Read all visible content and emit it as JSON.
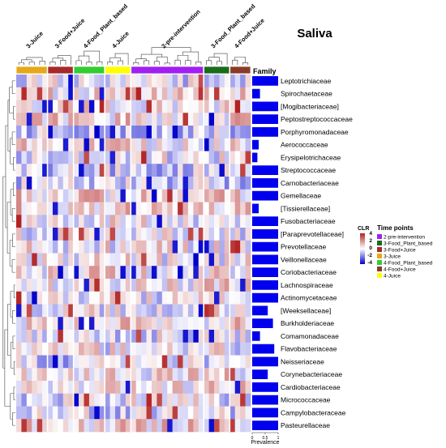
{
  "chart_data": {
    "type": "heatmap",
    "title": "Saliva",
    "row_annotation_label": "Family",
    "prevalence_label": "Prevalence",
    "prevalence_ticks": [
      "0",
      "0.5",
      "1"
    ],
    "column_groups": [
      {
        "name": "3-Juice",
        "color": "#E6A817",
        "n_cols": 6
      },
      {
        "name": "3-Food+Juice",
        "color": "#A52A2A",
        "n_cols": 5
      },
      {
        "name": "4-Food_Plant_based",
        "color": "#33CC33",
        "n_cols": 6
      },
      {
        "name": "4-Juice",
        "color": "#FFFF00",
        "n_cols": 5
      },
      {
        "name": "2-pre-intervention",
        "color": "#A020F0",
        "n_cols": 14
      },
      {
        "name": "3-Food_Plant_based",
        "color": "#1A6B1A",
        "n_cols": 5
      },
      {
        "name": "4-Food+Juice",
        "color": "#8B3A2A",
        "n_cols": 4
      }
    ],
    "rows": [
      {
        "family": "Leptotrichiaceae",
        "prevalence": 1.0
      },
      {
        "family": "Spirochaetaceae",
        "prevalence": 0.3
      },
      {
        "family": "[Mogibacteriaceae]",
        "prevalence": 1.0
      },
      {
        "family": "Peptostreptococcaceae",
        "prevalence": 1.0
      },
      {
        "family": "Porphyromonadaceae",
        "prevalence": 1.0
      },
      {
        "family": "Aerococcaceae",
        "prevalence": 0.25
      },
      {
        "family": "Erysipelotrichaceae",
        "prevalence": 0.2
      },
      {
        "family": "Streptococcaceae",
        "prevalence": 1.0
      },
      {
        "family": "Carnobacteriaceae",
        "prevalence": 1.0
      },
      {
        "family": "Gemellaceae",
        "prevalence": 1.0
      },
      {
        "family": "[Tissierellaceae]",
        "prevalence": 0.25
      },
      {
        "family": "Fusobacteriaceae",
        "prevalence": 1.0
      },
      {
        "family": "[Paraprevotellaceae]",
        "prevalence": 1.0
      },
      {
        "family": "Prevotellaceae",
        "prevalence": 1.0
      },
      {
        "family": "Veillonellaceae",
        "prevalence": 1.0
      },
      {
        "family": "Coriobacteriaceae",
        "prevalence": 1.0
      },
      {
        "family": "Lachnospiraceae",
        "prevalence": 1.0
      },
      {
        "family": "Actinomycetaceae",
        "prevalence": 1.0
      },
      {
        "family": "[Weeksellaceae]",
        "prevalence": 0.6
      },
      {
        "family": "Burkholderiaceae",
        "prevalence": 0.8
      },
      {
        "family": "Comamonadaceae",
        "prevalence": 0.3
      },
      {
        "family": "Flavobacteriaceae",
        "prevalence": 0.85
      },
      {
        "family": "Neisseriaceae",
        "prevalence": 1.0
      },
      {
        "family": "Corynebacteriaceae",
        "prevalence": 0.6
      },
      {
        "family": "Cardiobacteriaceae",
        "prevalence": 1.0
      },
      {
        "family": "Micrococcaceae",
        "prevalence": 1.0
      },
      {
        "family": "Campylobacteraceae",
        "prevalence": 1.0
      },
      {
        "family": "Pasteurellaceae",
        "prevalence": 1.0
      }
    ],
    "color_scale": {
      "title": "CLR",
      "ticks": [
        "4",
        "2",
        "0",
        "-2",
        "-4"
      ],
      "low_color": "#0000CC",
      "mid_color": "#FFFFFF",
      "high_color": "#B22222"
    },
    "legend": {
      "title": "Time points",
      "entries": [
        {
          "label": "2-pre-intervention",
          "color": "#A020F0"
        },
        {
          "label": "3-Food_Plant_based",
          "color": "#1A6B1A"
        },
        {
          "label": "3-Food+Juice",
          "color": "#A52A2A"
        },
        {
          "label": "3-Juice",
          "color": "#E6A817"
        },
        {
          "label": "4-Food_Plant_based",
          "color": "#33CC33"
        },
        {
          "label": "4-Food+Juice",
          "color": "#8B3A2A"
        },
        {
          "label": "4-Juice",
          "color": "#FFFF00"
        }
      ]
    },
    "bar_color": "#0000EE"
  }
}
